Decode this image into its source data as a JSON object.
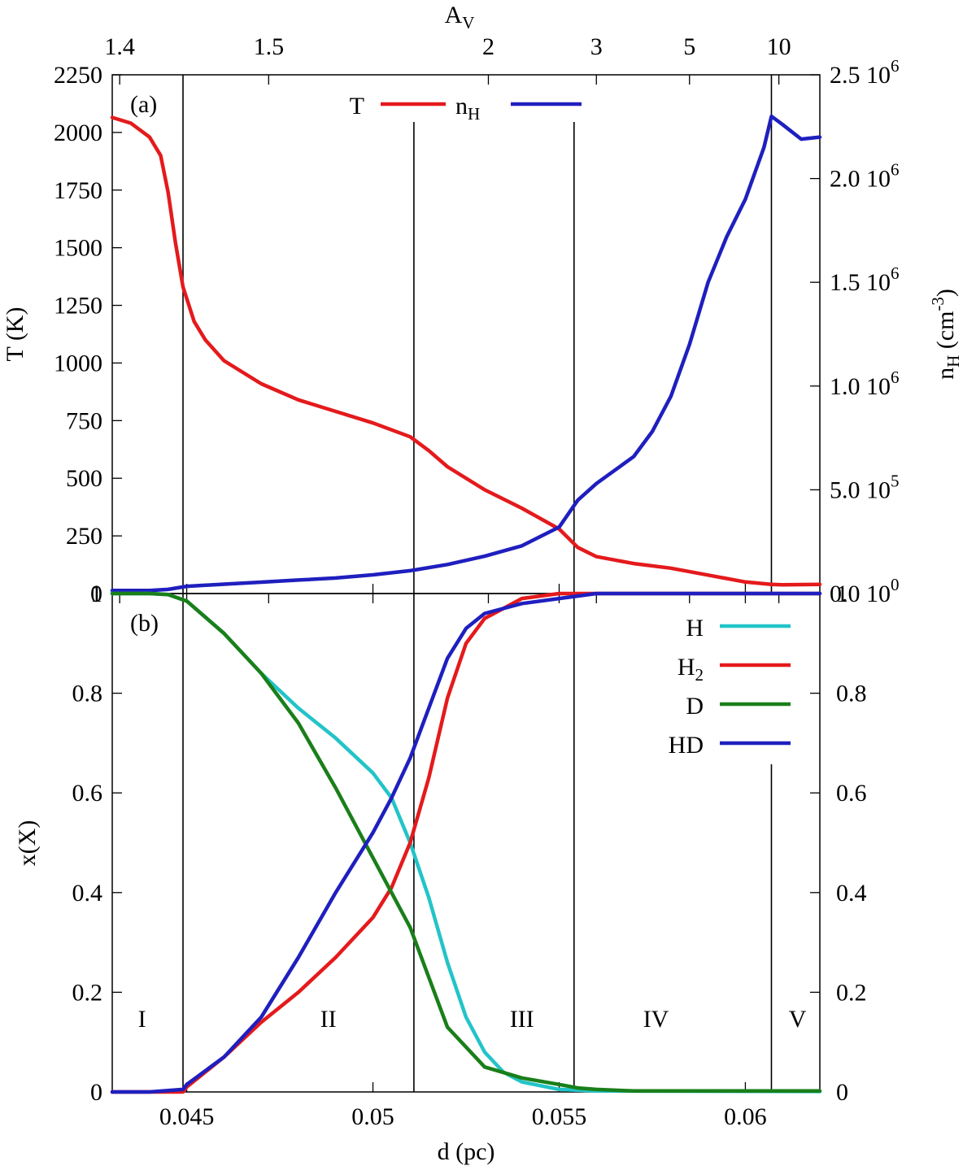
{
  "chart_data": [
    {
      "panel": "(a)",
      "type": "line",
      "x": {
        "label": "d (pc)",
        "range": [
          0.043,
          0.062
        ]
      },
      "top_axis": {
        "label": "A",
        "label_sub": "V",
        "ticks": [
          {
            "label": "1.4",
            "d": 0.0432
          },
          {
            "label": "1.5",
            "d": 0.0472
          },
          {
            "label": "2",
            "d": 0.0531
          },
          {
            "label": "3",
            "d": 0.056
          },
          {
            "label": "5",
            "d": 0.0585
          },
          {
            "label": "10",
            "d": 0.0609
          }
        ]
      },
      "y_left": {
        "label": "T (K)",
        "range": [
          0,
          2250
        ],
        "ticks": [
          {
            "value": 0,
            "label": "0"
          },
          {
            "value": 250,
            "label": "250"
          },
          {
            "value": 500,
            "label": "500"
          },
          {
            "value": 750,
            "label": "750"
          },
          {
            "value": 1000,
            "label": "1000"
          },
          {
            "value": 1250,
            "label": "1250"
          },
          {
            "value": 1500,
            "label": "1500"
          },
          {
            "value": 1750,
            "label": "1750"
          },
          {
            "value": 2000,
            "label": "2000"
          },
          {
            "value": 2250,
            "label": "2250"
          }
        ]
      },
      "y_right": {
        "label": "n",
        "label_sub": "H",
        "label_unit": " (cm",
        "label_exp": "-3",
        "label_close": ")",
        "range": [
          0,
          2500000
        ],
        "ticks": [
          {
            "value": 0,
            "mantissa": "0.0 10",
            "exp": "0"
          },
          {
            "value": 500000,
            "mantissa": "5.0 10",
            "exp": "5"
          },
          {
            "value": 1000000,
            "mantissa": "1.0 10",
            "exp": "6"
          },
          {
            "value": 1500000,
            "mantissa": "1.5 10",
            "exp": "6"
          },
          {
            "value": 2000000,
            "mantissa": "2.0 10",
            "exp": "6"
          },
          {
            "value": 2500000,
            "mantissa": "2.5 10",
            "exp": "6"
          }
        ]
      },
      "legend": {
        "position": "top-center",
        "entries": [
          {
            "name": "T",
            "sub": "",
            "color": "#e41a1c"
          },
          {
            "name": "n",
            "sub": "H",
            "color": "#1f1fbf"
          }
        ]
      },
      "series": [
        {
          "name": "T",
          "axis": "left",
          "color": "#e41a1c",
          "x": [
            0.043,
            0.0435,
            0.044,
            0.0443,
            0.0445,
            0.0447,
            0.0449,
            0.0452,
            0.0455,
            0.046,
            0.047,
            0.048,
            0.049,
            0.05,
            0.0505,
            0.051,
            0.0515,
            0.052,
            0.053,
            0.054,
            0.055,
            0.0555,
            0.056,
            0.057,
            0.058,
            0.059,
            0.06,
            0.0607,
            0.061,
            0.062
          ],
          "y": [
            2065,
            2040,
            1980,
            1900,
            1740,
            1520,
            1330,
            1180,
            1100,
            1010,
            910,
            840,
            790,
            740,
            710,
            680,
            620,
            550,
            450,
            370,
            280,
            200,
            160,
            130,
            110,
            80,
            50,
            40,
            38,
            40
          ]
        },
        {
          "name": "nH",
          "axis": "right",
          "color": "#1f1fbf",
          "x": [
            0.043,
            0.044,
            0.0445,
            0.045,
            0.046,
            0.047,
            0.048,
            0.049,
            0.05,
            0.051,
            0.052,
            0.053,
            0.054,
            0.055,
            0.0555,
            0.056,
            0.057,
            0.0575,
            0.058,
            0.0585,
            0.059,
            0.0595,
            0.06,
            0.0605,
            0.0607,
            0.061,
            0.0615,
            0.062
          ],
          "y": [
            15000,
            15000,
            20000,
            35000,
            45000,
            55000,
            65000,
            75000,
            90000,
            110000,
            140000,
            180000,
            230000,
            320000,
            450000,
            530000,
            660000,
            780000,
            950000,
            1200000,
            1500000,
            1720000,
            1900000,
            2150000,
            2300000,
            2260000,
            2190000,
            2200000
          ]
        }
      ]
    },
    {
      "panel": "(b)",
      "type": "line",
      "x": {
        "label": "d (pc)",
        "range": [
          0.043,
          0.062
        ],
        "ticks": [
          {
            "value": 0.045,
            "label": "0.045"
          },
          {
            "value": 0.05,
            "label": "0.05"
          },
          {
            "value": 0.055,
            "label": "0.055"
          },
          {
            "value": 0.06,
            "label": "0.06"
          }
        ]
      },
      "y_left": {
        "label": "x(X)",
        "range": [
          0,
          1
        ],
        "ticks": [
          {
            "value": 0,
            "label": "0"
          },
          {
            "value": 0.2,
            "label": "0.2"
          },
          {
            "value": 0.4,
            "label": "0.4"
          },
          {
            "value": 0.6,
            "label": "0.6"
          },
          {
            "value": 0.8,
            "label": "0.8"
          },
          {
            "value": 1,
            "label": "1"
          }
        ]
      },
      "legend": {
        "position": "top-right",
        "entries": [
          {
            "name": "H",
            "sub": "",
            "color": "#22c4c8"
          },
          {
            "name": "H",
            "sub": "2",
            "color": "#e41a1c"
          },
          {
            "name": "D",
            "sub": "",
            "color": "#1a7f1a"
          },
          {
            "name": "HD",
            "sub": "",
            "color": "#1f1fbf"
          }
        ]
      },
      "regions": [
        {
          "label": "I",
          "d": 0.0438
        },
        {
          "label": "II",
          "d": 0.0488
        },
        {
          "label": "III",
          "d": 0.054
        },
        {
          "label": "IV",
          "d": 0.0576
        },
        {
          "label": "V",
          "d": 0.0614
        }
      ],
      "boundaries": [
        0.0449,
        0.0511,
        0.0554,
        0.0607
      ],
      "series": [
        {
          "name": "H",
          "color": "#22c4c8",
          "x": [
            0.043,
            0.044,
            0.0445,
            0.045,
            0.046,
            0.047,
            0.048,
            0.049,
            0.05,
            0.0505,
            0.051,
            0.0515,
            0.052,
            0.0525,
            0.053,
            0.0535,
            0.054,
            0.055,
            0.056,
            0.062
          ],
          "y": [
            1,
            1,
            0.998,
            0.985,
            0.92,
            0.84,
            0.77,
            0.71,
            0.64,
            0.59,
            0.5,
            0.39,
            0.26,
            0.15,
            0.08,
            0.04,
            0.02,
            0.005,
            0.002,
            0.001
          ]
        },
        {
          "name": "H2",
          "color": "#e41a1c",
          "x": [
            0.043,
            0.044,
            0.0449,
            0.045,
            0.046,
            0.047,
            0.048,
            0.049,
            0.05,
            0.0505,
            0.051,
            0.0515,
            0.052,
            0.0525,
            0.053,
            0.054,
            0.055,
            0.056,
            0.062
          ],
          "y": [
            0,
            0,
            0,
            0.01,
            0.07,
            0.14,
            0.2,
            0.27,
            0.35,
            0.41,
            0.5,
            0.63,
            0.79,
            0.9,
            0.95,
            0.99,
            1,
            1,
            1
          ]
        },
        {
          "name": "D",
          "color": "#1a7f1a",
          "x": [
            0.043,
            0.044,
            0.0445,
            0.045,
            0.046,
            0.047,
            0.048,
            0.049,
            0.05,
            0.0505,
            0.051,
            0.0515,
            0.052,
            0.053,
            0.054,
            0.055,
            0.0555,
            0.056,
            0.057,
            0.062
          ],
          "y": [
            1,
            1,
            0.998,
            0.985,
            0.92,
            0.84,
            0.74,
            0.61,
            0.47,
            0.4,
            0.33,
            0.23,
            0.13,
            0.05,
            0.028,
            0.015,
            0.008,
            0.005,
            0.002,
            0.002
          ]
        },
        {
          "name": "HD",
          "color": "#1f1fbf",
          "x": [
            0.043,
            0.044,
            0.0449,
            0.045,
            0.046,
            0.047,
            0.048,
            0.049,
            0.05,
            0.0505,
            0.051,
            0.0515,
            0.052,
            0.0525,
            0.053,
            0.054,
            0.055,
            0.056,
            0.057,
            0.062
          ],
          "y": [
            0,
            0,
            0.005,
            0.015,
            0.07,
            0.15,
            0.27,
            0.4,
            0.52,
            0.59,
            0.67,
            0.77,
            0.87,
            0.93,
            0.96,
            0.98,
            0.99,
            1,
            1,
            1
          ]
        }
      ]
    }
  ]
}
